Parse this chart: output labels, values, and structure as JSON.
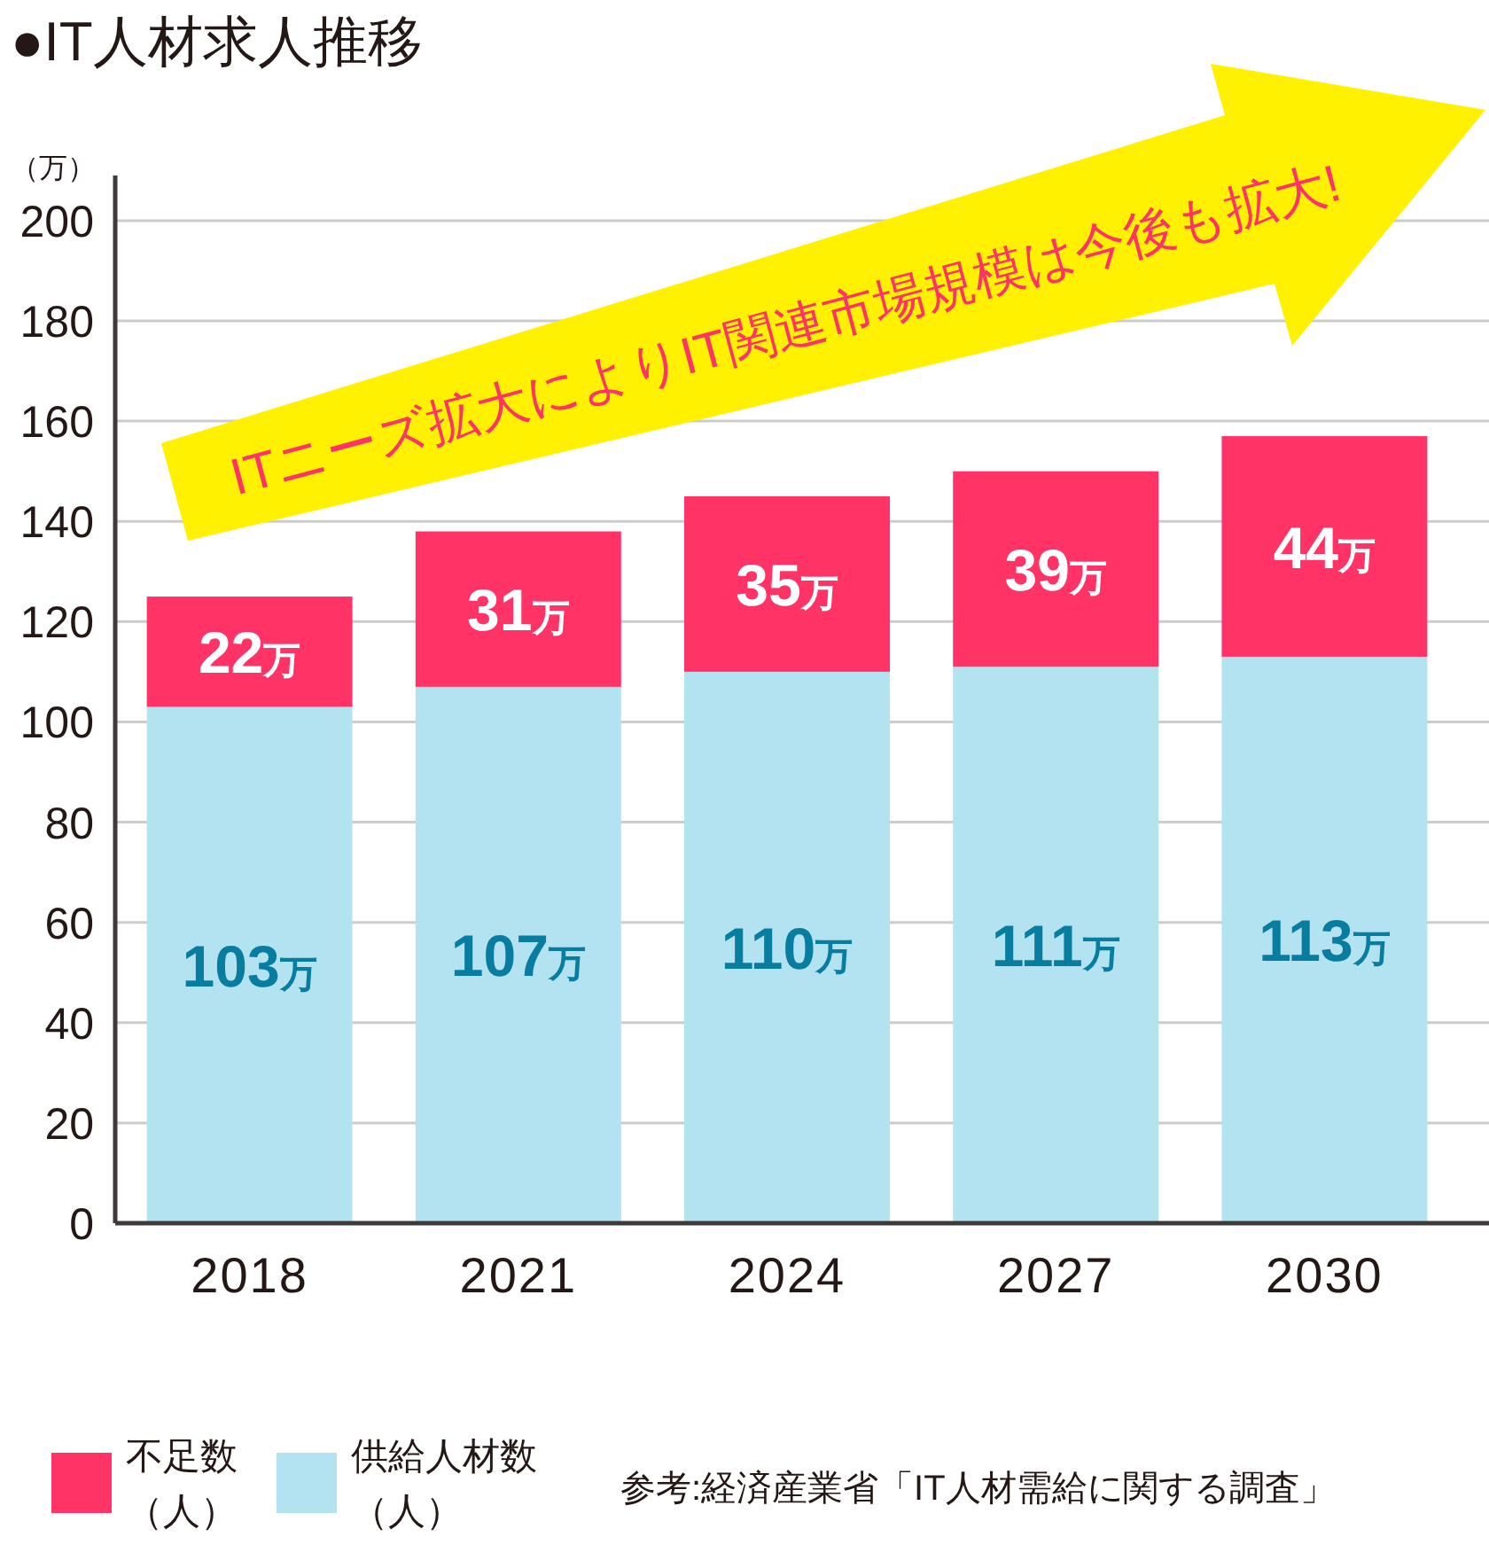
{
  "chart_data": {
    "type": "bar",
    "title": "●IT人材求人推移",
    "ylabel": "（万）",
    "categories": [
      "2018",
      "2021",
      "2024",
      "2027",
      "2030"
    ],
    "stacked": true,
    "series": [
      {
        "name": "供給人材数（人）",
        "color": "#b3e3f1",
        "values": [
          103,
          107,
          110,
          111,
          113
        ],
        "value_labels": [
          "103万",
          "107万",
          "110万",
          "111万",
          "113万"
        ]
      },
      {
        "name": "不足数（人）",
        "color": "#ff3366",
        "values": [
          22,
          31,
          35,
          39,
          44
        ],
        "value_labels": [
          "22万",
          "31万",
          "35万",
          "39万",
          "44万"
        ]
      }
    ],
    "ylim": [
      0,
      209
    ],
    "yticks": [
      0,
      20,
      40,
      60,
      80,
      100,
      120,
      140,
      160,
      180,
      200
    ],
    "grid": "y",
    "legend": "bottom",
    "annotations": [
      "ITニーズ拡大によりIT関連市場規模は今後も拡大!",
      "参考:経済産業省「IT人材需給に関する調査」"
    ]
  }
}
